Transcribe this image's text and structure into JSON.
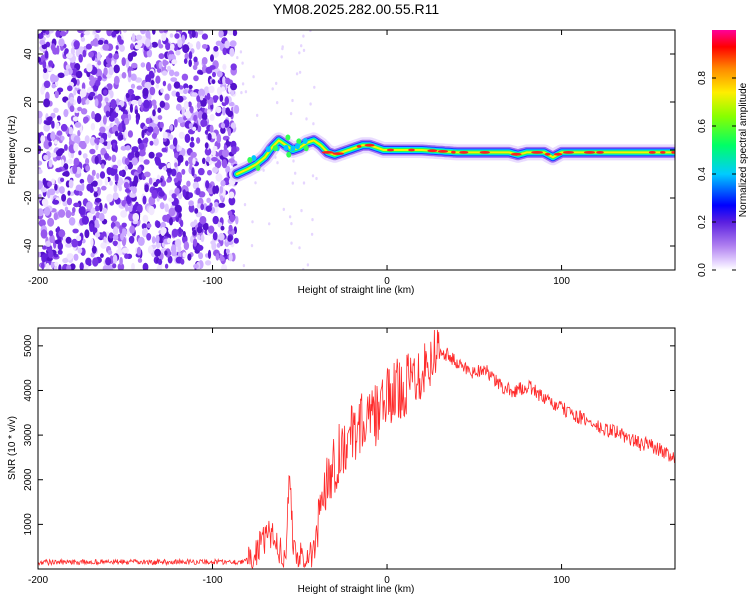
{
  "title": "YM08.2025.282.00.55.R11",
  "chart_data": [
    {
      "type": "heatmap",
      "name": "spectrogram",
      "xlabel": "Height of straight line (km)",
      "ylabel": "Frequency (Hz)",
      "xlim": [
        -200,
        165
      ],
      "ylim": [
        -50,
        50
      ],
      "xticks": [
        -200,
        -100,
        0,
        100
      ],
      "yticks": [
        -40,
        -20,
        0,
        20,
        40
      ],
      "noise_region_x": [
        -200,
        -86
      ],
      "signal_start_x": -86,
      "signal_ridge": {
        "x": [
          -86,
          -80,
          -75,
          -70,
          -66,
          -62,
          -58,
          -54,
          -50,
          -46,
          -42,
          -38,
          -34,
          -30,
          -26,
          -22,
          -18,
          -14,
          -10,
          -6,
          -2,
          0,
          20,
          40,
          60,
          70,
          75,
          80,
          90,
          95,
          100,
          110,
          130,
          150,
          165
        ],
        "y": [
          -10,
          -8,
          -6,
          -3,
          1,
          4,
          2,
          0,
          1,
          3,
          4,
          2,
          -1,
          -2,
          -1,
          0,
          1,
          2,
          2,
          1,
          0,
          0,
          0,
          -1,
          -1,
          -1,
          -2,
          -1,
          -1,
          -3,
          -1,
          -1,
          -1,
          -1,
          -1
        ]
      },
      "colorbar": {
        "label": "Normalized spectral amplitude",
        "ticks": [
          "0.0",
          "0.2",
          "0.4",
          "0.6",
          "0.8"
        ],
        "range": [
          0,
          1
        ]
      }
    },
    {
      "type": "line",
      "name": "snr",
      "xlabel": "Height of straight line (km)",
      "ylabel": "SNR (10 * v/v)",
      "xlim": [
        -200,
        165
      ],
      "ylim": [
        0,
        5400
      ],
      "xticks": [
        -200,
        -100,
        0,
        100
      ],
      "yticks": [
        1000,
        2000,
        3000,
        4000,
        5000
      ],
      "color": "#ff2a2a",
      "series": [
        {
          "name": "SNR",
          "x": [
            -200,
            -180,
            -160,
            -140,
            -120,
            -100,
            -85,
            -78,
            -74,
            -70,
            -66,
            -62,
            -60,
            -58,
            -56,
            -54,
            -52,
            -50,
            -46,
            -42,
            -38,
            -35,
            -30,
            -25,
            -20,
            -15,
            -10,
            -5,
            0,
            5,
            10,
            15,
            20,
            25,
            30,
            35,
            40,
            45,
            50,
            55,
            60,
            65,
            70,
            75,
            80,
            85,
            90,
            95,
            100,
            105,
            110,
            115,
            120,
            125,
            130,
            135,
            140,
            145,
            150,
            155,
            160,
            165
          ],
          "y": [
            150,
            150,
            160,
            150,
            160,
            160,
            160,
            200,
            450,
            650,
            800,
            500,
            300,
            400,
            2100,
            700,
            300,
            250,
            200,
            300,
            1500,
            2000,
            2400,
            2800,
            3000,
            3300,
            3300,
            3500,
            3800,
            4000,
            4100,
            4300,
            4500,
            4700,
            4900,
            4800,
            4600,
            4500,
            4400,
            4500,
            4300,
            4100,
            4000,
            4000,
            4100,
            4000,
            3800,
            3700,
            3600,
            3500,
            3400,
            3300,
            3200,
            3100,
            3100,
            3000,
            2900,
            2800,
            2800,
            2700,
            2600,
            2500
          ]
        }
      ]
    }
  ]
}
